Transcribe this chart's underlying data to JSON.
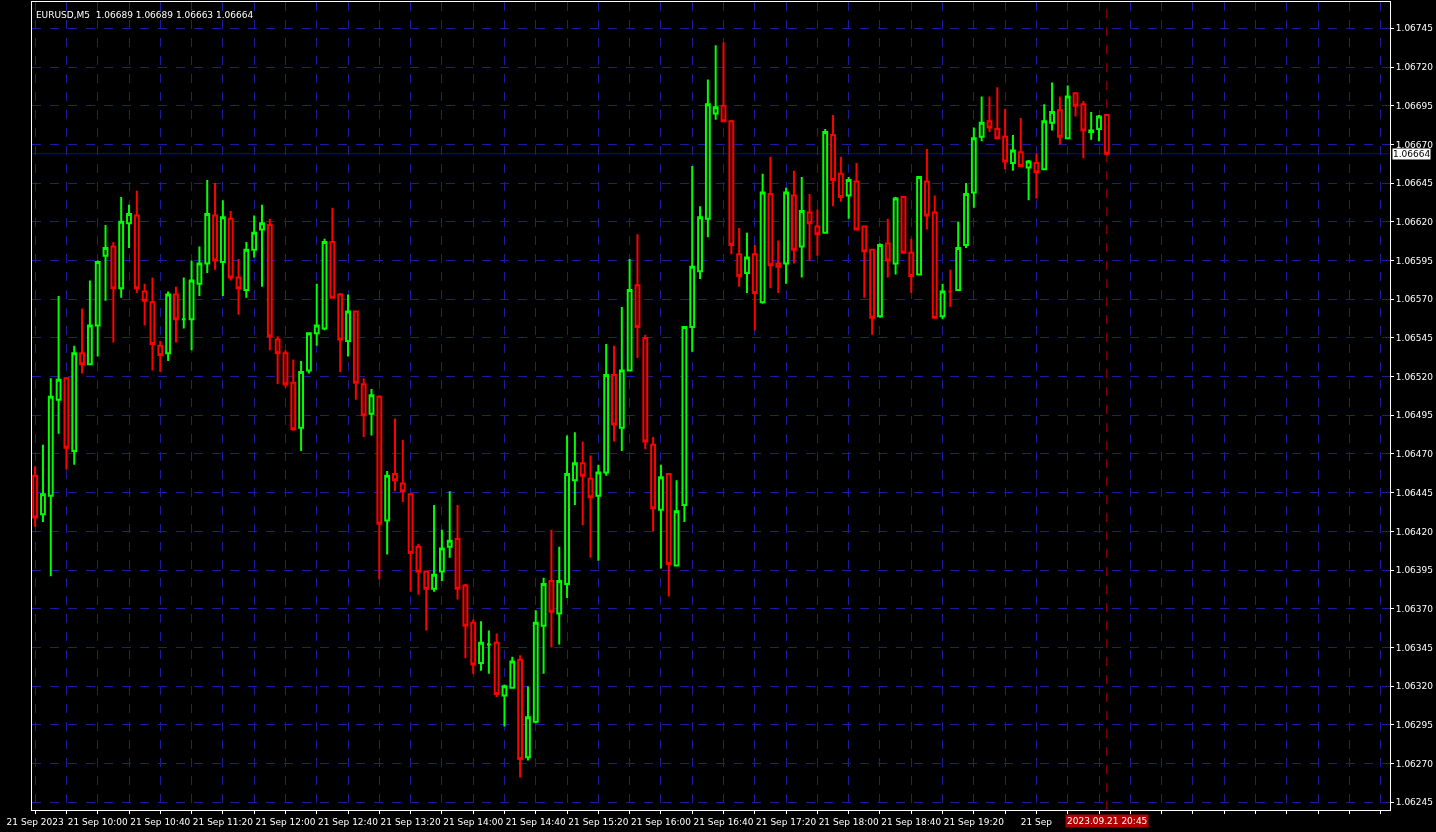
{
  "chart_data": {
    "type": "candlestick",
    "title": "EURUSD,M5  1.06689 1.06689 1.06663 1.06664",
    "x": [
      "2023-09-21T09:20",
      "2023-09-21T09:25",
      "2023-09-21T09:30",
      "2023-09-21T09:35",
      "2023-09-21T09:40",
      "2023-09-21T09:45",
      "2023-09-21T09:50",
      "2023-09-21T09:55",
      "2023-09-21T10:00",
      "2023-09-21T10:05",
      "2023-09-21T10:10",
      "2023-09-21T10:15",
      "2023-09-21T10:20",
      "2023-09-21T10:25",
      "2023-09-21T10:30",
      "2023-09-21T10:35",
      "2023-09-21T10:40",
      "2023-09-21T10:45",
      "2023-09-21T10:50",
      "2023-09-21T10:55",
      "2023-09-21T11:00",
      "2023-09-21T11:05",
      "2023-09-21T11:10",
      "2023-09-21T11:15",
      "2023-09-21T11:20",
      "2023-09-21T11:25",
      "2023-09-21T11:30",
      "2023-09-21T11:35",
      "2023-09-21T11:40",
      "2023-09-21T11:45",
      "2023-09-21T11:50",
      "2023-09-21T11:55",
      "2023-09-21T12:00",
      "2023-09-21T12:05",
      "2023-09-21T12:10",
      "2023-09-21T12:15",
      "2023-09-21T12:20",
      "2023-09-21T12:25",
      "2023-09-21T12:30",
      "2023-09-21T12:35",
      "2023-09-21T12:40",
      "2023-09-21T12:45",
      "2023-09-21T12:50",
      "2023-09-21T12:55",
      "2023-09-21T13:00",
      "2023-09-21T13:05",
      "2023-09-21T13:10",
      "2023-09-21T13:15",
      "2023-09-21T13:20",
      "2023-09-21T13:25",
      "2023-09-21T13:30",
      "2023-09-21T13:35",
      "2023-09-21T13:40",
      "2023-09-21T13:45",
      "2023-09-21T13:50",
      "2023-09-21T13:55",
      "2023-09-21T14:00",
      "2023-09-21T14:05",
      "2023-09-21T14:10",
      "2023-09-21T14:15",
      "2023-09-21T14:20",
      "2023-09-21T14:25",
      "2023-09-21T14:30",
      "2023-09-21T14:35",
      "2023-09-21T14:40",
      "2023-09-21T14:45",
      "2023-09-21T14:50",
      "2023-09-21T14:55",
      "2023-09-21T15:00",
      "2023-09-21T15:05",
      "2023-09-21T15:10",
      "2023-09-21T15:15",
      "2023-09-21T15:20",
      "2023-09-21T15:25",
      "2023-09-21T15:30",
      "2023-09-21T15:35",
      "2023-09-21T15:40",
      "2023-09-21T15:45",
      "2023-09-21T15:50",
      "2023-09-21T15:55",
      "2023-09-21T16:00",
      "2023-09-21T16:05",
      "2023-09-21T16:10",
      "2023-09-21T16:15",
      "2023-09-21T16:20",
      "2023-09-21T16:25",
      "2023-09-21T16:30",
      "2023-09-21T16:35",
      "2023-09-21T16:40",
      "2023-09-21T16:45",
      "2023-09-21T16:50",
      "2023-09-21T16:55",
      "2023-09-21T17:00",
      "2023-09-21T17:05",
      "2023-09-21T17:10",
      "2023-09-21T17:15",
      "2023-09-21T17:20",
      "2023-09-21T17:25",
      "2023-09-21T17:30",
      "2023-09-21T17:35",
      "2023-09-21T17:40",
      "2023-09-21T17:45",
      "2023-09-21T17:50",
      "2023-09-21T17:55",
      "2023-09-21T18:00",
      "2023-09-21T18:05",
      "2023-09-21T18:10",
      "2023-09-21T18:15",
      "2023-09-21T18:20",
      "2023-09-21T18:25",
      "2023-09-21T18:30",
      "2023-09-21T18:35",
      "2023-09-21T18:40",
      "2023-09-21T18:45",
      "2023-09-21T18:50",
      "2023-09-21T18:55",
      "2023-09-21T19:00",
      "2023-09-21T19:05",
      "2023-09-21T19:10",
      "2023-09-21T19:15",
      "2023-09-21T19:20",
      "2023-09-21T19:25",
      "2023-09-21T19:30",
      "2023-09-21T19:35",
      "2023-09-21T19:40",
      "2023-09-21T19:45",
      "2023-09-21T19:50",
      "2023-09-21T19:55",
      "2023-09-21T20:00",
      "2023-09-21T20:05",
      "2023-09-21T20:10",
      "2023-09-21T20:15",
      "2023-09-21T20:20",
      "2023-09-21T20:25",
      "2023-09-21T20:30",
      "2023-09-21T20:35",
      "2023-09-21T20:40",
      "2023-09-21T20:45"
    ],
    "ohlc": [
      [
        1.06456,
        1.06462,
        1.06423,
        1.06429
      ],
      [
        1.06431,
        1.06476,
        1.06426,
        1.06444
      ],
      [
        1.06443,
        1.06519,
        1.06391,
        1.06507
      ],
      [
        1.06505,
        1.06572,
        1.06483,
        1.06518
      ],
      [
        1.06519,
        1.06519,
        1.0646,
        1.06474
      ],
      [
        1.06472,
        1.0654,
        1.06463,
        1.06535
      ],
      [
        1.06535,
        1.06564,
        1.06522,
        1.06528
      ],
      [
        1.06528,
        1.06582,
        1.06528,
        1.06553
      ],
      [
        1.06553,
        1.06595,
        1.06533,
        1.06594
      ],
      [
        1.06598,
        1.06618,
        1.06569,
        1.06603
      ],
      [
        1.06604,
        1.06607,
        1.06542,
        1.06577
      ],
      [
        1.06577,
        1.06636,
        1.06571,
        1.0662
      ],
      [
        1.06619,
        1.06631,
        1.06603,
        1.06625
      ],
      [
        1.06624,
        1.0664,
        1.06574,
        1.06577
      ],
      [
        1.06575,
        1.0658,
        1.06553,
        1.06569
      ],
      [
        1.06568,
        1.06584,
        1.06524,
        1.06541
      ],
      [
        1.0654,
        1.06543,
        1.06523,
        1.06534
      ],
      [
        1.06535,
        1.06575,
        1.0653,
        1.06573
      ],
      [
        1.06573,
        1.06578,
        1.06542,
        1.06557
      ],
      [
        1.06557,
        1.06584,
        1.06551,
        1.06557
      ],
      [
        1.06557,
        1.06595,
        1.06537,
        1.06582
      ],
      [
        1.0658,
        1.06604,
        1.06572,
        1.06593
      ],
      [
        1.06593,
        1.06647,
        1.06587,
        1.06625
      ],
      [
        1.06624,
        1.06645,
        1.06589,
        1.06595
      ],
      [
        1.06594,
        1.06634,
        1.06572,
        1.06623
      ],
      [
        1.06622,
        1.06627,
        1.06582,
        1.06584
      ],
      [
        1.06584,
        1.06596,
        1.0656,
        1.06577
      ],
      [
        1.06576,
        1.06607,
        1.06571,
        1.06602
      ],
      [
        1.06602,
        1.06624,
        1.06597,
        1.06613
      ],
      [
        1.06615,
        1.06631,
        1.06578,
        1.06619
      ],
      [
        1.06618,
        1.06622,
        1.06537,
        1.06546
      ],
      [
        1.06544,
        1.06546,
        1.06515,
        1.06535
      ],
      [
        1.06535,
        1.06537,
        1.06513,
        1.06515
      ],
      [
        1.06516,
        1.06531,
        1.06485,
        1.06486
      ],
      [
        1.06487,
        1.0653,
        1.06472,
        1.06523
      ],
      [
        1.06524,
        1.06548,
        1.06522,
        1.06548
      ],
      [
        1.06548,
        1.0658,
        1.0654,
        1.06553
      ],
      [
        1.06551,
        1.06609,
        1.0655,
        1.06607
      ],
      [
        1.06607,
        1.06629,
        1.06571,
        1.06571
      ],
      [
        1.06573,
        1.06574,
        1.06523,
        1.06544
      ],
      [
        1.06543,
        1.06573,
        1.06533,
        1.06562
      ],
      [
        1.06562,
        1.06562,
        1.06505,
        1.06516
      ],
      [
        1.06515,
        1.06519,
        1.06481,
        1.06495
      ],
      [
        1.06496,
        1.06512,
        1.06482,
        1.06508
      ],
      [
        1.06507,
        1.06508,
        1.06389,
        1.06425
      ],
      [
        1.06427,
        1.06459,
        1.06405,
        1.06456
      ],
      [
        1.06457,
        1.06493,
        1.06446,
        1.06453
      ],
      [
        1.06451,
        1.06479,
        1.06439,
        1.06446
      ],
      [
        1.06444,
        1.06444,
        1.06381,
        1.06406
      ],
      [
        1.0641,
        1.06412,
        1.06379,
        1.06394
      ],
      [
        1.06394,
        1.06394,
        1.06356,
        1.06383
      ],
      [
        1.06383,
        1.06437,
        1.06381,
        1.06392
      ],
      [
        1.06394,
        1.06421,
        1.06388,
        1.06409
      ],
      [
        1.0641,
        1.06446,
        1.06403,
        1.06414
      ],
      [
        1.06415,
        1.06437,
        1.06376,
        1.06383
      ],
      [
        1.06385,
        1.06386,
        1.06338,
        1.06359
      ],
      [
        1.06361,
        1.06363,
        1.06328,
        1.06334
      ],
      [
        1.06335,
        1.06362,
        1.0633,
        1.06348
      ],
      [
        1.06347,
        1.06356,
        1.06328,
        1.06347
      ],
      [
        1.06348,
        1.06354,
        1.06313,
        1.06315
      ],
      [
        1.06314,
        1.06321,
        1.06294,
        1.0632
      ],
      [
        1.06319,
        1.06339,
        1.06319,
        1.06336
      ],
      [
        1.06337,
        1.0634,
        1.06261,
        1.06273
      ],
      [
        1.06274,
        1.0632,
        1.06272,
        1.063
      ],
      [
        1.06297,
        1.06369,
        1.06296,
        1.06361
      ],
      [
        1.06359,
        1.0639,
        1.06328,
        1.06386
      ],
      [
        1.06388,
        1.06421,
        1.06345,
        1.06368
      ],
      [
        1.06367,
        1.0641,
        1.06347,
        1.06388
      ],
      [
        1.06386,
        1.06482,
        1.06377,
        1.06457
      ],
      [
        1.06453,
        1.06484,
        1.06437,
        1.06464
      ],
      [
        1.06464,
        1.06478,
        1.06424,
        1.06456
      ],
      [
        1.06454,
        1.06469,
        1.06403,
        1.06442
      ],
      [
        1.06443,
        1.06463,
        1.06401,
        1.06458
      ],
      [
        1.06458,
        1.06541,
        1.06456,
        1.06521
      ],
      [
        1.06521,
        1.0654,
        1.06478,
        1.06489
      ],
      [
        1.06487,
        1.06565,
        1.06472,
        1.06524
      ],
      [
        1.06524,
        1.06596,
        1.06524,
        1.06576
      ],
      [
        1.06579,
        1.06612,
        1.06532,
        1.06552
      ],
      [
        1.06545,
        1.06547,
        1.06473,
        1.06478
      ],
      [
        1.06476,
        1.06481,
        1.0642,
        1.06435
      ],
      [
        1.06434,
        1.06463,
        1.06396,
        1.06455
      ],
      [
        1.06457,
        1.06457,
        1.06378,
        1.06399
      ],
      [
        1.06398,
        1.06453,
        1.06398,
        1.06433
      ],
      [
        1.06437,
        1.06552,
        1.06426,
        1.06552
      ],
      [
        1.06552,
        1.06656,
        1.06536,
        1.06591
      ],
      [
        1.06588,
        1.0663,
        1.06583,
        1.06623
      ],
      [
        1.06622,
        1.06712,
        1.0661,
        1.06696
      ],
      [
        1.0669,
        1.06734,
        1.06686,
        1.06694
      ],
      [
        1.06695,
        1.06736,
        1.06685,
        1.06685
      ],
      [
        1.06685,
        1.06686,
        1.06599,
        1.06605
      ],
      [
        1.06599,
        1.06616,
        1.06578,
        1.06585
      ],
      [
        1.06587,
        1.06613,
        1.06574,
        1.06597
      ],
      [
        1.06599,
        1.06605,
        1.0655,
        1.06574
      ],
      [
        1.06568,
        1.06651,
        1.06567,
        1.06639
      ],
      [
        1.06638,
        1.06662,
        1.06577,
        1.06592
      ],
      [
        1.06593,
        1.06608,
        1.06574,
        1.06591
      ],
      [
        1.06593,
        1.06642,
        1.0658,
        1.06639
      ],
      [
        1.06637,
        1.06653,
        1.06593,
        1.06602
      ],
      [
        1.06604,
        1.06649,
        1.06584,
        1.06627
      ],
      [
        1.06626,
        1.06638,
        1.06595,
        1.06619
      ],
      [
        1.06617,
        1.06628,
        1.06598,
        1.06612
      ],
      [
        1.06613,
        1.0668,
        1.06613,
        1.06678
      ],
      [
        1.06676,
        1.06689,
        1.0663,
        1.06647
      ],
      [
        1.06651,
        1.06662,
        1.06633,
        1.06636
      ],
      [
        1.06637,
        1.06649,
        1.06622,
        1.06647
      ],
      [
        1.06646,
        1.06658,
        1.06615,
        1.06615
      ],
      [
        1.06617,
        1.06617,
        1.06571,
        1.06601
      ],
      [
        1.06602,
        1.06602,
        1.06547,
        1.06558
      ],
      [
        1.06559,
        1.06606,
        1.06558,
        1.06605
      ],
      [
        1.06606,
        1.06622,
        1.06584,
        1.06595
      ],
      [
        1.06593,
        1.06636,
        1.06586,
        1.06635
      ],
      [
        1.06636,
        1.06636,
        1.066,
        1.066
      ],
      [
        1.066,
        1.06609,
        1.06574,
        1.06585
      ],
      [
        1.06586,
        1.06649,
        1.06586,
        1.06649
      ],
      [
        1.06646,
        1.06667,
        1.06615,
        1.06624
      ],
      [
        1.06626,
        1.06637,
        1.06558,
        1.06558
      ],
      [
        1.06559,
        1.0658,
        1.06557,
        1.06575
      ],
      [
        1.06575,
        1.06589,
        1.06565,
        1.06575
      ],
      [
        1.06576,
        1.0662,
        1.06576,
        1.06603
      ],
      [
        1.06605,
        1.06645,
        1.06603,
        1.06638
      ],
      [
        1.06639,
        1.06681,
        1.06629,
        1.06674
      ],
      [
        1.06675,
        1.06701,
        1.06672,
        1.06684
      ],
      [
        1.06685,
        1.06701,
        1.06678,
        1.06681
      ],
      [
        1.0668,
        1.06707,
        1.06674,
        1.06674
      ],
      [
        1.06675,
        1.06693,
        1.06654,
        1.06659
      ],
      [
        1.06658,
        1.06676,
        1.06653,
        1.06666
      ],
      [
        1.06665,
        1.06687,
        1.06656,
        1.06656
      ],
      [
        1.06655,
        1.0666,
        1.06634,
        1.06659
      ],
      [
        1.06658,
        1.06664,
        1.06635,
        1.06652
      ],
      [
        1.06654,
        1.06696,
        1.06654,
        1.06685
      ],
      [
        1.06684,
        1.0671,
        1.06679,
        1.06691
      ],
      [
        1.06692,
        1.06701,
        1.0667,
        1.06675
      ],
      [
        1.06674,
        1.06708,
        1.06674,
        1.06701
      ],
      [
        1.06703,
        1.06703,
        1.06688,
        1.06695
      ],
      [
        1.06696,
        1.06698,
        1.06661,
        1.06679
      ],
      [
        1.06678,
        1.06691,
        1.06673,
        1.06679
      ],
      [
        1.0668,
        1.06689,
        1.06672,
        1.06688
      ],
      [
        1.06689,
        1.06689,
        1.06663,
        1.06664
      ]
    ],
    "colors": [
      "#ff0000",
      "#00ff00",
      "#00ff00",
      "#00ff00",
      "#ff0000",
      "#00ff00",
      "#ff0000",
      "#00ff00",
      "#00ff00",
      "#00ff00",
      "#ff0000",
      "#00ff00",
      "#00ff00",
      "#ff0000",
      "#ff0000",
      "#ff0000",
      "#ff0000",
      "#00ff00",
      "#ff0000",
      "#00ff00",
      "#00ff00",
      "#00ff00",
      "#00ff00",
      "#ff0000",
      "#00ff00",
      "#ff0000",
      "#ff0000",
      "#00ff00",
      "#00ff00",
      "#00ff00",
      "#ff0000",
      "#ff0000",
      "#ff0000",
      "#ff0000",
      "#00ff00",
      "#00ff00",
      "#00ff00",
      "#00ff00",
      "#ff0000",
      "#ff0000",
      "#00ff00",
      "#ff0000",
      "#ff0000",
      "#00ff00",
      "#ff0000",
      "#00ff00",
      "#ff0000",
      "#ff0000",
      "#ff0000",
      "#ff0000",
      "#ff0000",
      "#00ff00",
      "#00ff00",
      "#00ff00",
      "#ff0000",
      "#ff0000",
      "#ff0000",
      "#00ff00",
      "#00ff00",
      "#ff0000",
      "#00ff00",
      "#00ff00",
      "#ff0000",
      "#00ff00",
      "#00ff00",
      "#00ff00",
      "#ff0000",
      "#00ff00",
      "#00ff00",
      "#00ff00",
      "#ff0000",
      "#ff0000",
      "#00ff00",
      "#00ff00",
      "#ff0000",
      "#00ff00",
      "#00ff00",
      "#ff0000",
      "#ff0000",
      "#ff0000",
      "#00ff00",
      "#ff0000",
      "#00ff00",
      "#00ff00",
      "#00ff00",
      "#00ff00",
      "#00ff00",
      "#00ff00",
      "#ff0000",
      "#ff0000",
      "#ff0000",
      "#00ff00",
      "#ff0000",
      "#00ff00",
      "#ff0000",
      "#ff0000",
      "#00ff00",
      "#ff0000",
      "#00ff00",
      "#ff0000",
      "#ff0000",
      "#00ff00",
      "#ff0000",
      "#ff0000",
      "#00ff00",
      "#ff0000",
      "#ff0000",
      "#ff0000",
      "#00ff00",
      "#ff0000",
      "#00ff00",
      "#ff0000",
      "#ff0000",
      "#00ff00",
      "#ff0000",
      "#ff0000",
      "#00ff00",
      "#ff0000",
      "#00ff00",
      "#00ff00",
      "#00ff00",
      "#00ff00",
      "#ff0000",
      "#ff0000",
      "#ff0000",
      "#00ff00",
      "#ff0000",
      "#00ff00",
      "#ff0000",
      "#00ff00",
      "#00ff00",
      "#ff0000",
      "#00ff00",
      "#ff0000",
      "#ff0000",
      "#00ff00",
      "#00ff00",
      "#ff0000"
    ],
    "xlim": [
      "2023-09-21T09:18",
      "2023-09-21T23:46"
    ],
    "xticks": [
      {
        "value": "2023-09-21T09:20",
        "label": "21 Sep 2023"
      },
      {
        "value": "2023-09-21T09:40",
        "label": null
      },
      {
        "value": "2023-09-21T10:00",
        "label": "21 Sep 10:00"
      },
      {
        "value": "2023-09-21T10:20",
        "label": null
      },
      {
        "value": "2023-09-21T10:40",
        "label": "21 Sep 10:40"
      },
      {
        "value": "2023-09-21T11:00",
        "label": null
      },
      {
        "value": "2023-09-21T11:20",
        "label": "21 Sep 11:20"
      },
      {
        "value": "2023-09-21T11:40",
        "label": null
      },
      {
        "value": "2023-09-21T12:00",
        "label": "21 Sep 12:00"
      },
      {
        "value": "2023-09-21T12:20",
        "label": null
      },
      {
        "value": "2023-09-21T12:40",
        "label": "21 Sep 12:40"
      },
      {
        "value": "2023-09-21T13:00",
        "label": null
      },
      {
        "value": "2023-09-21T13:20",
        "label": "21 Sep 13:20"
      },
      {
        "value": "2023-09-21T13:40",
        "label": null
      },
      {
        "value": "2023-09-21T14:00",
        "label": "21 Sep 14:00"
      },
      {
        "value": "2023-09-21T14:20",
        "label": null
      },
      {
        "value": "2023-09-21T14:40",
        "label": "21 Sep 14:40"
      },
      {
        "value": "2023-09-21T15:00",
        "label": null
      },
      {
        "value": "2023-09-21T15:20",
        "label": "21 Sep 15:20"
      },
      {
        "value": "2023-09-21T15:40",
        "label": null
      },
      {
        "value": "2023-09-21T16:00",
        "label": "21 Sep 16:00"
      },
      {
        "value": "2023-09-21T16:20",
        "label": null
      },
      {
        "value": "2023-09-21T16:40",
        "label": "21 Sep 16:40"
      },
      {
        "value": "2023-09-21T17:00",
        "label": null
      },
      {
        "value": "2023-09-21T17:20",
        "label": "21 Sep 17:20"
      },
      {
        "value": "2023-09-21T17:40",
        "label": null
      },
      {
        "value": "2023-09-21T18:00",
        "label": "21 Sep 18:00"
      },
      {
        "value": "2023-09-21T18:20",
        "label": null
      },
      {
        "value": "2023-09-21T18:40",
        "label": "21 Sep 18:40"
      },
      {
        "value": "2023-09-21T19:00",
        "label": null
      },
      {
        "value": "2023-09-21T19:20",
        "label": "21 Sep 19:20"
      },
      {
        "value": "2023-09-21T19:40",
        "label": null
      },
      {
        "value": "2023-09-21T20:00",
        "label": "21 Sep"
      },
      {
        "value": "2023-09-21T20:20",
        "label": null
      },
      {
        "value": "2023-09-21T20:40",
        "label": null
      },
      {
        "value": "2023-09-21T21:00",
        "label": null
      },
      {
        "value": "2023-09-21T21:20",
        "label": null
      },
      {
        "value": "2023-09-21T21:40",
        "label": null
      },
      {
        "value": "2023-09-21T22:00",
        "label": null
      },
      {
        "value": "2023-09-21T22:20",
        "label": null
      },
      {
        "value": "2023-09-21T22:40",
        "label": null
      },
      {
        "value": "2023-09-21T23:00",
        "label": null
      },
      {
        "value": "2023-09-21T23:20",
        "label": null
      },
      {
        "value": "2023-09-21T23:40",
        "label": null
      }
    ],
    "ylim": [
      1.0624,
      1.06762
    ],
    "yticks": [
      1.06245,
      {
        "value": 1.0627,
        "label": "1.06270"
      },
      1.06295,
      {
        "value": 1.0632,
        "label": "1.06320"
      },
      1.06345,
      {
        "value": 1.0637,
        "label": "1.06370"
      },
      1.06395,
      {
        "value": 1.0642,
        "label": "1.06420"
      },
      1.06445,
      {
        "value": 1.0647,
        "label": "1.06470"
      },
      1.06495,
      {
        "value": 1.0652,
        "label": "1.06520"
      },
      1.06545,
      {
        "value": 1.0657,
        "label": "1.06570"
      },
      1.06595,
      {
        "value": 1.0662,
        "label": "1.06620"
      },
      1.06645,
      {
        "value": 1.0667,
        "label": "1.06670"
      },
      1.06695,
      {
        "value": 1.0672,
        "label": "1.06720"
      },
      1.06745
    ],
    "grid": true,
    "ref_lines": [
      {
        "axis": "y",
        "value": 1.06664,
        "label": "1.06664",
        "color": "#0000c8",
        "line_style": "solid"
      },
      {
        "axis": "x",
        "value": "2023-09-21T20:45",
        "label": "2023.09.21 20:45",
        "color": "#b00000",
        "line_style": "dashed"
      }
    ]
  }
}
